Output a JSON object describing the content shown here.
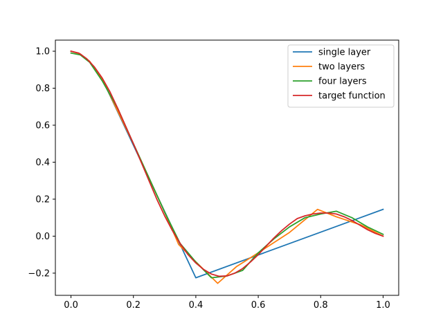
{
  "chart_data": {
    "type": "line",
    "title": "",
    "xlabel": "",
    "ylabel": "",
    "xlim": [
      -0.05,
      1.05
    ],
    "ylim": [
      -0.32,
      1.06
    ],
    "xticks": [
      0.0,
      0.2,
      0.4,
      0.6,
      0.8,
      1.0
    ],
    "xtick_labels": [
      "0.0",
      "0.2",
      "0.4",
      "0.6",
      "0.8",
      "1.0"
    ],
    "yticks": [
      -0.2,
      0.0,
      0.2,
      0.4,
      0.6,
      0.8,
      1.0
    ],
    "ytick_labels": [
      "−0.2",
      "0.0",
      "0.2",
      "0.4",
      "0.6",
      "0.8",
      "1.0"
    ],
    "grid": false,
    "legend": {
      "placement": "top-right"
    },
    "series": [
      {
        "name": "single layer",
        "color": "#1f77b4",
        "x": [
          0.0,
          0.03,
          0.06,
          0.1,
          0.4,
          1.0
        ],
        "y": [
          1.0,
          0.985,
          0.945,
          0.85,
          -0.225,
          0.145
        ]
      },
      {
        "name": "two layers",
        "color": "#ff7f0e",
        "x": [
          0.0,
          0.03,
          0.06,
          0.1,
          0.2,
          0.3,
          0.345,
          0.395,
          0.47,
          0.53,
          0.6,
          0.7,
          0.79,
          0.85,
          0.93,
          1.0
        ],
        "y": [
          1.0,
          0.985,
          0.945,
          0.85,
          0.5,
          0.13,
          -0.045,
          -0.13,
          -0.255,
          -0.165,
          -0.09,
          0.02,
          0.145,
          0.105,
          0.06,
          0.0
        ]
      },
      {
        "name": "four layers",
        "color": "#2ca02c",
        "x": [
          0.0,
          0.03,
          0.06,
          0.1,
          0.15,
          0.2,
          0.3,
          0.35,
          0.4,
          0.45,
          0.5,
          0.55,
          0.6,
          0.65,
          0.7,
          0.75,
          0.8,
          0.85,
          0.9,
          0.95,
          1.0
        ],
        "y": [
          0.99,
          0.98,
          0.94,
          0.84,
          0.69,
          0.5,
          0.13,
          -0.04,
          -0.14,
          -0.225,
          -0.215,
          -0.185,
          -0.09,
          -0.015,
          0.05,
          0.1,
          0.12,
          0.135,
          0.1,
          0.05,
          0.01
        ]
      },
      {
        "name": "target function",
        "color": "#d62728",
        "x": [
          0.0,
          0.025,
          0.05,
          0.075,
          0.1,
          0.125,
          0.15,
          0.175,
          0.2,
          0.225,
          0.25,
          0.275,
          0.3,
          0.325,
          0.35,
          0.375,
          0.4,
          0.425,
          0.45,
          0.475,
          0.5,
          0.525,
          0.55,
          0.575,
          0.6,
          0.625,
          0.65,
          0.675,
          0.7,
          0.725,
          0.75,
          0.775,
          0.8,
          0.825,
          0.85,
          0.875,
          0.9,
          0.925,
          0.95,
          0.975,
          1.0
        ],
        "y": [
          1.0,
          0.99,
          0.96,
          0.915,
          0.855,
          0.78,
          0.69,
          0.595,
          0.5,
          0.4,
          0.3,
          0.2,
          0.11,
          0.03,
          -0.04,
          -0.1,
          -0.145,
          -0.18,
          -0.205,
          -0.217,
          -0.215,
          -0.2,
          -0.175,
          -0.14,
          -0.1,
          -0.055,
          -0.01,
          0.03,
          0.065,
          0.095,
          0.11,
          0.12,
          0.125,
          0.125,
          0.12,
          0.105,
          0.085,
          0.06,
          0.035,
          0.015,
          0.0
        ]
      }
    ]
  }
}
